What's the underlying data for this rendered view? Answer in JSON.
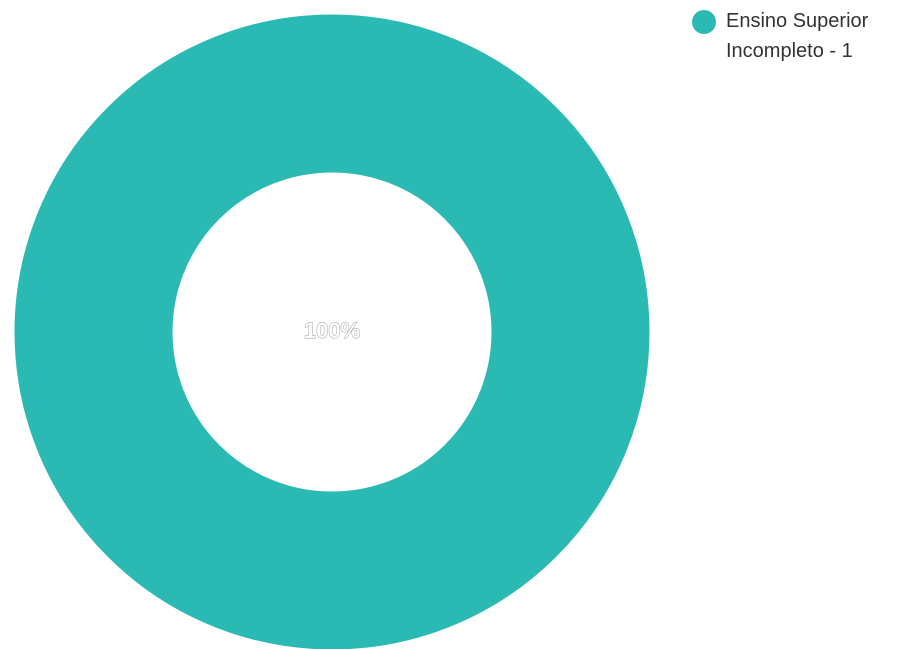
{
  "chart_data": {
    "type": "pie",
    "variant": "donut",
    "categories": [
      "Ensino Superior Incompleto"
    ],
    "values": [
      1
    ],
    "slice_labels": [
      "100%"
    ],
    "legend_labels": [
      "Ensino Superior Incompleto - 1"
    ],
    "colors": [
      "#2ab9b3"
    ],
    "legend_position": "top-right",
    "legend_marker": "circle"
  }
}
